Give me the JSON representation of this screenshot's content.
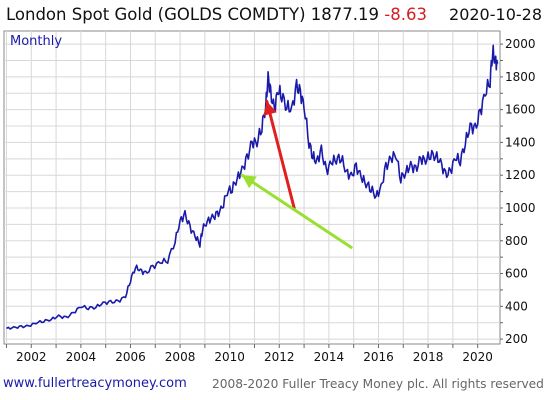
{
  "header": {
    "name": "London Spot Gold (GOLDS COMDTY)",
    "price": "1877.19",
    "change": "-8.63",
    "date": "2020-10-28"
  },
  "footer": {
    "website": "www.fullertreacymoney.com",
    "copyright": "2008-2020 Fuller Treacy Money plc. All rights reserved"
  },
  "chart_data": {
    "type": "line",
    "period_label": "Monthly",
    "title": "London Spot Gold (GOLDS COMDTY) 1877.19 -8.63",
    "xlim": [
      2000.9,
      2020.9
    ],
    "ylim": [
      170,
      2080
    ],
    "x_ticks": [
      2002,
      2004,
      2006,
      2008,
      2010,
      2012,
      2014,
      2016,
      2018,
      2020
    ],
    "y_ticks": [
      200,
      400,
      600,
      800,
      1000,
      1200,
      1400,
      1600,
      1800,
      2000
    ],
    "y_axis_side": "right",
    "grid": true,
    "line_color": "#1a1aaa",
    "series": [
      {
        "x": [
          2001.0,
          2001.3,
          2001.6,
          2001.9,
          2002.2,
          2002.5,
          2002.8,
          2003.1,
          2003.4,
          2003.7,
          2004.0,
          2004.3,
          2004.6,
          2004.9,
          2005.2,
          2005.5,
          2005.8,
          2006.0,
          2006.2,
          2006.4,
          2006.6,
          2006.9,
          2007.2,
          2007.5,
          2007.8,
          2008.0,
          2008.2,
          2008.4,
          2008.6,
          2008.8,
          2008.9,
          2009.1,
          2009.3,
          2009.5,
          2009.7,
          2009.9,
          2010.1,
          2010.3,
          2010.5,
          2010.7,
          2010.9,
          2011.1,
          2011.3,
          2011.45,
          2011.55,
          2011.65,
          2011.8,
          2011.95,
          2012.1,
          2012.3,
          2012.5,
          2012.7,
          2012.85,
          2013.0,
          2013.2,
          2013.35,
          2013.5,
          2013.7,
          2013.9,
          2014.1,
          2014.3,
          2014.5,
          2014.7,
          2014.9,
          2015.1,
          2015.3,
          2015.5,
          2015.7,
          2015.9,
          2016.1,
          2016.3,
          2016.5,
          2016.7,
          2016.9,
          2017.1,
          2017.3,
          2017.5,
          2017.7,
          2017.9,
          2018.1,
          2018.3,
          2018.5,
          2018.7,
          2018.9,
          2019.1,
          2019.3,
          2019.5,
          2019.7,
          2019.9,
          2020.1,
          2020.3,
          2020.5,
          2020.6,
          2020.7,
          2020.8
        ],
        "y": [
          265,
          270,
          275,
          280,
          300,
          310,
          320,
          340,
          330,
          360,
          400,
          390,
          395,
          420,
          425,
          430,
          460,
          560,
          640,
          620,
          600,
          640,
          670,
          680,
          800,
          920,
          960,
          880,
          830,
          780,
          870,
          920,
          940,
          960,
          1000,
          1100,
          1120,
          1180,
          1230,
          1300,
          1400,
          1400,
          1500,
          1620,
          1800,
          1700,
          1600,
          1720,
          1690,
          1620,
          1600,
          1740,
          1700,
          1620,
          1400,
          1320,
          1280,
          1350,
          1220,
          1280,
          1300,
          1310,
          1220,
          1190,
          1250,
          1190,
          1150,
          1120,
          1070,
          1120,
          1250,
          1300,
          1330,
          1180,
          1220,
          1260,
          1230,
          1300,
          1290,
          1330,
          1320,
          1280,
          1200,
          1220,
          1310,
          1290,
          1400,
          1500,
          1480,
          1580,
          1700,
          1780,
          1960,
          1900,
          1880
        ]
      }
    ],
    "annotations": [
      {
        "type": "arrow",
        "color": "#e02020",
        "from": [
          2012.6,
          1000
        ],
        "to": [
          2011.5,
          1650
        ]
      },
      {
        "type": "arrow",
        "color": "#99e030",
        "from": [
          2014.9,
          760
        ],
        "to": [
          2010.5,
          1200
        ]
      }
    ]
  }
}
